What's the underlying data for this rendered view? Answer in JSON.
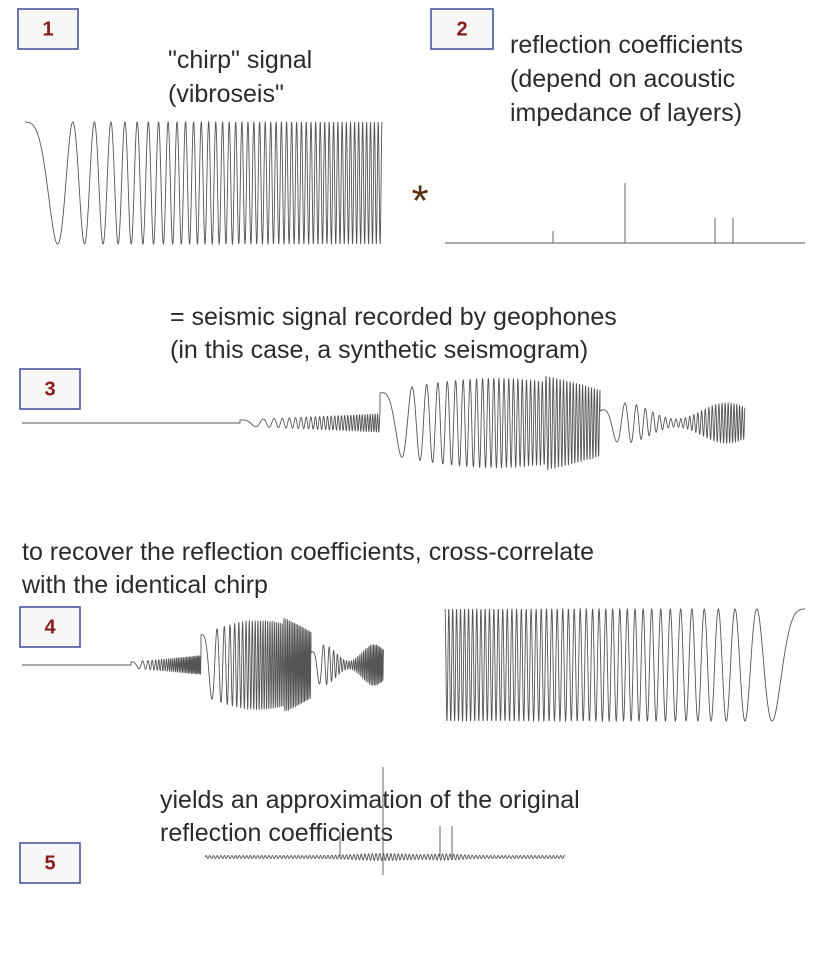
{
  "steps": [
    {
      "number": "1",
      "caption": [
        "\"chirp\" signal",
        "(vibroseis\""
      ]
    },
    {
      "number": "2",
      "caption": [
        "reflection coefficients",
        "(depend on acoustic",
        "impedance of layers)"
      ]
    },
    {
      "number": "3",
      "caption": [
        "= seismic signal recorded by geophones",
        "(in this case, a synthetic seismogram)"
      ]
    },
    {
      "number": "4",
      "caption": [
        "to recover the reflection coefficients, cross-correlate",
        "with the identical chirp"
      ]
    },
    {
      "number": "5",
      "caption": [
        "yields an approximation of the original",
        "reflection coefficients"
      ]
    }
  ],
  "operator": "*"
}
